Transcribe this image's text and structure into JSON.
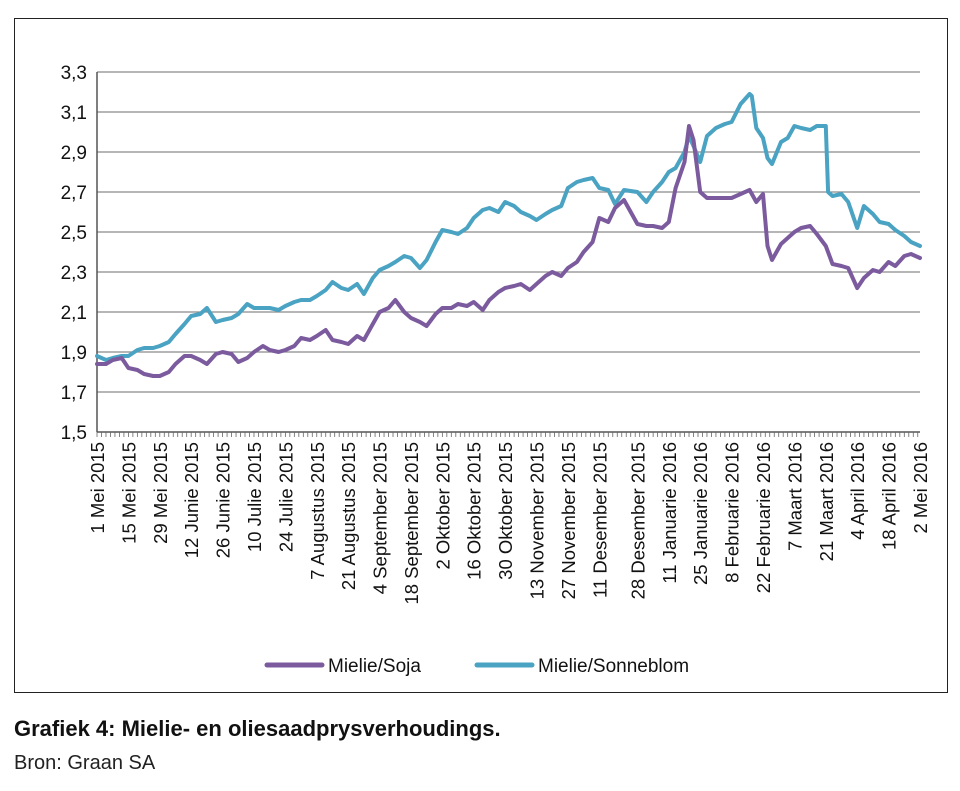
{
  "caption": {
    "title": "Grafiek 4: Mielie- en oliesaadprysverhoudings.",
    "source": "Bron: Graan SA"
  },
  "chart_data": {
    "type": "line",
    "title": "",
    "xlabel": "",
    "ylabel": "",
    "ylim": [
      1.5,
      3.3
    ],
    "yticks": [
      "1,5",
      "1,7",
      "1,9",
      "2,1",
      "2,3",
      "2,5",
      "2,7",
      "2,9",
      "3,1",
      "3,3"
    ],
    "grid": "horizontal",
    "legend_position": "bottom-center",
    "x_tick_labels": [
      "1 Mei 2015",
      "15 Mei 2015",
      "29 Mei 2015",
      "12 Junie 2015",
      "26 Junie 2015",
      "10 Julie 2015",
      "24 Julie 2015",
      "7 Augustus 2015",
      "21 Augustus 2015",
      "4 September 2015",
      "18 September 2015",
      "2 Oktober 2015",
      "16 Oktober 2015",
      "30 Oktober 2015",
      "13 November 2015",
      "27 November 2015",
      "11 Desember 2015",
      "28 Desember 2015",
      "11 Januarie 2016",
      "25 Januarie 2016",
      "8 Februarie 2016",
      "22 Februarie 2016",
      "7 Maart 2016",
      "21 Maart 2016",
      "4 April 2016",
      "18 April 2016",
      "2 Mei 2016"
    ],
    "x_tick_dates": [
      "2015-05-01",
      "2015-05-15",
      "2015-05-29",
      "2015-06-12",
      "2015-06-26",
      "2015-07-10",
      "2015-07-24",
      "2015-08-07",
      "2015-08-21",
      "2015-09-04",
      "2015-09-18",
      "2015-10-02",
      "2015-10-16",
      "2015-10-30",
      "2015-11-13",
      "2015-11-27",
      "2015-12-11",
      "2015-12-28",
      "2016-01-11",
      "2016-01-25",
      "2016-02-08",
      "2016-02-22",
      "2016-03-07",
      "2016-03-21",
      "2016-04-04",
      "2016-04-18",
      "2016-05-02"
    ],
    "series": [
      {
        "name": "Mielie/Soja",
        "color": "#7b5b9e",
        "points": [
          [
            "2015-05-01",
            1.84
          ],
          [
            "2015-05-05",
            1.84
          ],
          [
            "2015-05-08",
            1.86
          ],
          [
            "2015-05-12",
            1.87
          ],
          [
            "2015-05-15",
            1.82
          ],
          [
            "2015-05-19",
            1.81
          ],
          [
            "2015-05-22",
            1.79
          ],
          [
            "2015-05-26",
            1.78
          ],
          [
            "2015-05-29",
            1.78
          ],
          [
            "2015-06-02",
            1.8
          ],
          [
            "2015-06-05",
            1.84
          ],
          [
            "2015-06-09",
            1.88
          ],
          [
            "2015-06-12",
            1.88
          ],
          [
            "2015-06-16",
            1.86
          ],
          [
            "2015-06-19",
            1.84
          ],
          [
            "2015-06-23",
            1.89
          ],
          [
            "2015-06-26",
            1.9
          ],
          [
            "2015-06-30",
            1.89
          ],
          [
            "2015-07-03",
            1.85
          ],
          [
            "2015-07-07",
            1.87
          ],
          [
            "2015-07-10",
            1.9
          ],
          [
            "2015-07-14",
            1.93
          ],
          [
            "2015-07-17",
            1.91
          ],
          [
            "2015-07-21",
            1.9
          ],
          [
            "2015-07-24",
            1.91
          ],
          [
            "2015-07-28",
            1.93
          ],
          [
            "2015-07-31",
            1.97
          ],
          [
            "2015-08-04",
            1.96
          ],
          [
            "2015-08-07",
            1.98
          ],
          [
            "2015-08-11",
            2.01
          ],
          [
            "2015-08-14",
            1.96
          ],
          [
            "2015-08-18",
            1.95
          ],
          [
            "2015-08-21",
            1.94
          ],
          [
            "2015-08-25",
            1.98
          ],
          [
            "2015-08-28",
            1.96
          ],
          [
            "2015-09-01",
            2.04
          ],
          [
            "2015-09-04",
            2.1
          ],
          [
            "2015-09-08",
            2.12
          ],
          [
            "2015-09-11",
            2.16
          ],
          [
            "2015-09-15",
            2.1
          ],
          [
            "2015-09-18",
            2.07
          ],
          [
            "2015-09-22",
            2.05
          ],
          [
            "2015-09-25",
            2.03
          ],
          [
            "2015-09-29",
            2.09
          ],
          [
            "2015-10-02",
            2.12
          ],
          [
            "2015-10-06",
            2.12
          ],
          [
            "2015-10-09",
            2.14
          ],
          [
            "2015-10-13",
            2.13
          ],
          [
            "2015-10-16",
            2.15
          ],
          [
            "2015-10-20",
            2.11
          ],
          [
            "2015-10-23",
            2.16
          ],
          [
            "2015-10-27",
            2.2
          ],
          [
            "2015-10-30",
            2.22
          ],
          [
            "2015-11-03",
            2.23
          ],
          [
            "2015-11-06",
            2.24
          ],
          [
            "2015-11-10",
            2.21
          ],
          [
            "2015-11-13",
            2.24
          ],
          [
            "2015-11-17",
            2.28
          ],
          [
            "2015-11-20",
            2.3
          ],
          [
            "2015-11-24",
            2.28
          ],
          [
            "2015-11-27",
            2.32
          ],
          [
            "2015-12-01",
            2.35
          ],
          [
            "2015-12-04",
            2.4
          ],
          [
            "2015-12-08",
            2.45
          ],
          [
            "2015-12-11",
            2.57
          ],
          [
            "2015-12-15",
            2.55
          ],
          [
            "2015-12-18",
            2.62
          ],
          [
            "2015-12-22",
            2.66
          ],
          [
            "2015-12-28",
            2.54
          ],
          [
            "2016-01-01",
            2.53
          ],
          [
            "2016-01-04",
            2.53
          ],
          [
            "2016-01-08",
            2.52
          ],
          [
            "2016-01-11",
            2.55
          ],
          [
            "2016-01-14",
            2.72
          ],
          [
            "2016-01-18",
            2.85
          ],
          [
            "2016-01-20",
            3.03
          ],
          [
            "2016-01-22",
            2.96
          ],
          [
            "2016-01-25",
            2.7
          ],
          [
            "2016-01-28",
            2.67
          ],
          [
            "2016-02-01",
            2.67
          ],
          [
            "2016-02-05",
            2.67
          ],
          [
            "2016-02-08",
            2.67
          ],
          [
            "2016-02-12",
            2.69
          ],
          [
            "2016-02-16",
            2.71
          ],
          [
            "2016-02-19",
            2.65
          ],
          [
            "2016-02-22",
            2.69
          ],
          [
            "2016-02-24",
            2.43
          ],
          [
            "2016-02-26",
            2.36
          ],
          [
            "2016-03-01",
            2.44
          ],
          [
            "2016-03-04",
            2.47
          ],
          [
            "2016-03-07",
            2.5
          ],
          [
            "2016-03-10",
            2.52
          ],
          [
            "2016-03-14",
            2.53
          ],
          [
            "2016-03-17",
            2.49
          ],
          [
            "2016-03-21",
            2.43
          ],
          [
            "2016-03-24",
            2.34
          ],
          [
            "2016-03-28",
            2.33
          ],
          [
            "2016-03-31",
            2.32
          ],
          [
            "2016-04-04",
            2.22
          ],
          [
            "2016-04-07",
            2.27
          ],
          [
            "2016-04-11",
            2.31
          ],
          [
            "2016-04-14",
            2.3
          ],
          [
            "2016-04-18",
            2.35
          ],
          [
            "2016-04-21",
            2.33
          ],
          [
            "2016-04-25",
            2.38
          ],
          [
            "2016-04-28",
            2.39
          ],
          [
            "2016-05-02",
            2.37
          ]
        ]
      },
      {
        "name": "Mielie/Sonneblom",
        "color": "#4aa3c2",
        "points": [
          [
            "2015-05-01",
            1.88
          ],
          [
            "2015-05-05",
            1.86
          ],
          [
            "2015-05-08",
            1.87
          ],
          [
            "2015-05-12",
            1.88
          ],
          [
            "2015-05-15",
            1.88
          ],
          [
            "2015-05-19",
            1.91
          ],
          [
            "2015-05-22",
            1.92
          ],
          [
            "2015-05-26",
            1.92
          ],
          [
            "2015-05-29",
            1.93
          ],
          [
            "2015-06-02",
            1.95
          ],
          [
            "2015-06-05",
            1.99
          ],
          [
            "2015-06-09",
            2.04
          ],
          [
            "2015-06-12",
            2.08
          ],
          [
            "2015-06-16",
            2.09
          ],
          [
            "2015-06-19",
            2.12
          ],
          [
            "2015-06-23",
            2.05
          ],
          [
            "2015-06-26",
            2.06
          ],
          [
            "2015-06-30",
            2.07
          ],
          [
            "2015-07-03",
            2.09
          ],
          [
            "2015-07-07",
            2.14
          ],
          [
            "2015-07-10",
            2.12
          ],
          [
            "2015-07-14",
            2.12
          ],
          [
            "2015-07-17",
            2.12
          ],
          [
            "2015-07-21",
            2.11
          ],
          [
            "2015-07-24",
            2.13
          ],
          [
            "2015-07-28",
            2.15
          ],
          [
            "2015-07-31",
            2.16
          ],
          [
            "2015-08-04",
            2.16
          ],
          [
            "2015-08-07",
            2.18
          ],
          [
            "2015-08-11",
            2.21
          ],
          [
            "2015-08-14",
            2.25
          ],
          [
            "2015-08-18",
            2.22
          ],
          [
            "2015-08-21",
            2.21
          ],
          [
            "2015-08-25",
            2.24
          ],
          [
            "2015-08-28",
            2.19
          ],
          [
            "2015-09-01",
            2.27
          ],
          [
            "2015-09-04",
            2.31
          ],
          [
            "2015-09-08",
            2.33
          ],
          [
            "2015-09-11",
            2.35
          ],
          [
            "2015-09-15",
            2.38
          ],
          [
            "2015-09-18",
            2.37
          ],
          [
            "2015-09-22",
            2.32
          ],
          [
            "2015-09-25",
            2.36
          ],
          [
            "2015-09-29",
            2.45
          ],
          [
            "2015-10-02",
            2.51
          ],
          [
            "2015-10-06",
            2.5
          ],
          [
            "2015-10-09",
            2.49
          ],
          [
            "2015-10-13",
            2.52
          ],
          [
            "2015-10-16",
            2.57
          ],
          [
            "2015-10-20",
            2.61
          ],
          [
            "2015-10-23",
            2.62
          ],
          [
            "2015-10-27",
            2.6
          ],
          [
            "2015-10-30",
            2.65
          ],
          [
            "2015-11-03",
            2.63
          ],
          [
            "2015-11-06",
            2.6
          ],
          [
            "2015-11-10",
            2.58
          ],
          [
            "2015-11-13",
            2.56
          ],
          [
            "2015-11-17",
            2.59
          ],
          [
            "2015-11-20",
            2.61
          ],
          [
            "2015-11-24",
            2.63
          ],
          [
            "2015-11-27",
            2.72
          ],
          [
            "2015-12-01",
            2.75
          ],
          [
            "2015-12-04",
            2.76
          ],
          [
            "2015-12-08",
            2.77
          ],
          [
            "2015-12-11",
            2.72
          ],
          [
            "2015-12-15",
            2.71
          ],
          [
            "2015-12-18",
            2.64
          ],
          [
            "2015-12-22",
            2.71
          ],
          [
            "2015-12-28",
            2.7
          ],
          [
            "2016-01-01",
            2.65
          ],
          [
            "2016-01-04",
            2.7
          ],
          [
            "2016-01-08",
            2.75
          ],
          [
            "2016-01-11",
            2.8
          ],
          [
            "2016-01-14",
            2.82
          ],
          [
            "2016-01-18",
            2.9
          ],
          [
            "2016-01-20",
            2.98
          ],
          [
            "2016-01-22",
            2.93
          ],
          [
            "2016-01-25",
            2.85
          ],
          [
            "2016-01-28",
            2.98
          ],
          [
            "2016-02-01",
            3.02
          ],
          [
            "2016-02-05",
            3.04
          ],
          [
            "2016-02-08",
            3.05
          ],
          [
            "2016-02-12",
            3.14
          ],
          [
            "2016-02-16",
            3.19
          ],
          [
            "2016-02-17",
            3.18
          ],
          [
            "2016-02-19",
            3.02
          ],
          [
            "2016-02-22",
            2.97
          ],
          [
            "2016-02-24",
            2.87
          ],
          [
            "2016-02-26",
            2.84
          ],
          [
            "2016-03-01",
            2.95
          ],
          [
            "2016-03-04",
            2.97
          ],
          [
            "2016-03-07",
            3.03
          ],
          [
            "2016-03-10",
            3.02
          ],
          [
            "2016-03-14",
            3.01
          ],
          [
            "2016-03-17",
            3.03
          ],
          [
            "2016-03-21",
            3.03
          ],
          [
            "2016-03-22",
            2.7
          ],
          [
            "2016-03-24",
            2.68
          ],
          [
            "2016-03-28",
            2.69
          ],
          [
            "2016-03-31",
            2.65
          ],
          [
            "2016-04-04",
            2.52
          ],
          [
            "2016-04-07",
            2.63
          ],
          [
            "2016-04-11",
            2.59
          ],
          [
            "2016-04-14",
            2.55
          ],
          [
            "2016-04-18",
            2.54
          ],
          [
            "2016-04-21",
            2.51
          ],
          [
            "2016-04-25",
            2.48
          ],
          [
            "2016-04-28",
            2.45
          ],
          [
            "2016-05-02",
            2.43
          ]
        ]
      }
    ]
  }
}
